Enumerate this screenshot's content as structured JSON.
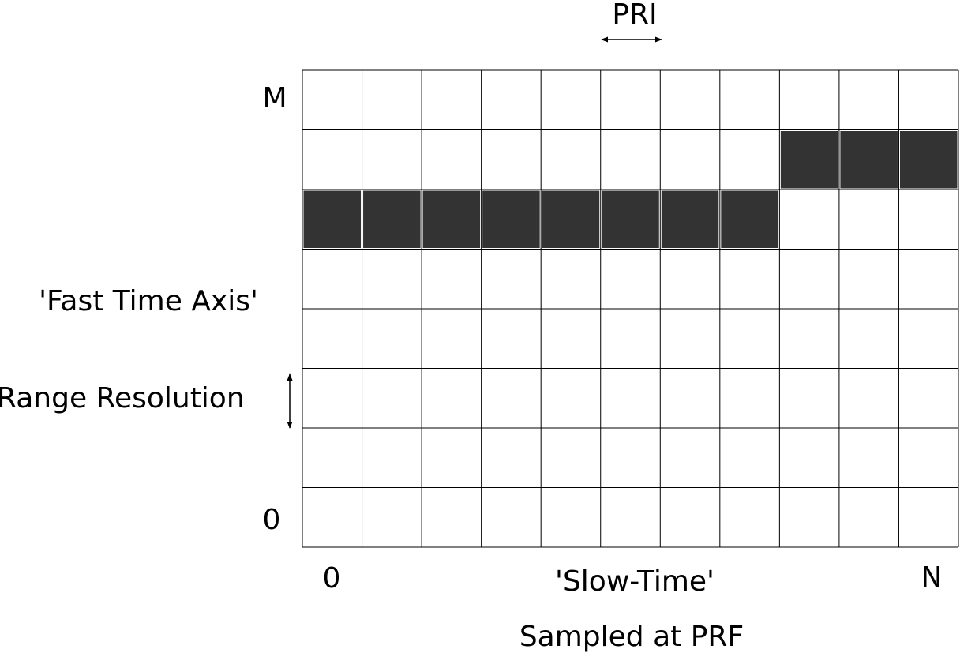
{
  "labels": {
    "top_interval": "PRI",
    "fast_axis_max": "M",
    "fast_axis_name": "'Fast Time Axis'",
    "range_resolution": "Range Resolution",
    "fast_axis_min": "0",
    "slow_axis_min": "0",
    "slow_axis_name": "'Slow-Time'",
    "slow_axis_max": "N",
    "sampling_note": "Sampled at PRF"
  },
  "grid": {
    "columns": 11,
    "rows": 8,
    "filled_cells": [
      {
        "row": 2,
        "col": 0
      },
      {
        "row": 2,
        "col": 1
      },
      {
        "row": 2,
        "col": 2
      },
      {
        "row": 2,
        "col": 3
      },
      {
        "row": 2,
        "col": 4
      },
      {
        "row": 2,
        "col": 5
      },
      {
        "row": 2,
        "col": 6
      },
      {
        "row": 2,
        "col": 7
      },
      {
        "row": 1,
        "col": 8
      },
      {
        "row": 1,
        "col": 9
      },
      {
        "row": 1,
        "col": 10
      }
    ]
  },
  "colors": {
    "filled": "#333333",
    "grid_line": "#000000",
    "background": "#ffffff"
  }
}
